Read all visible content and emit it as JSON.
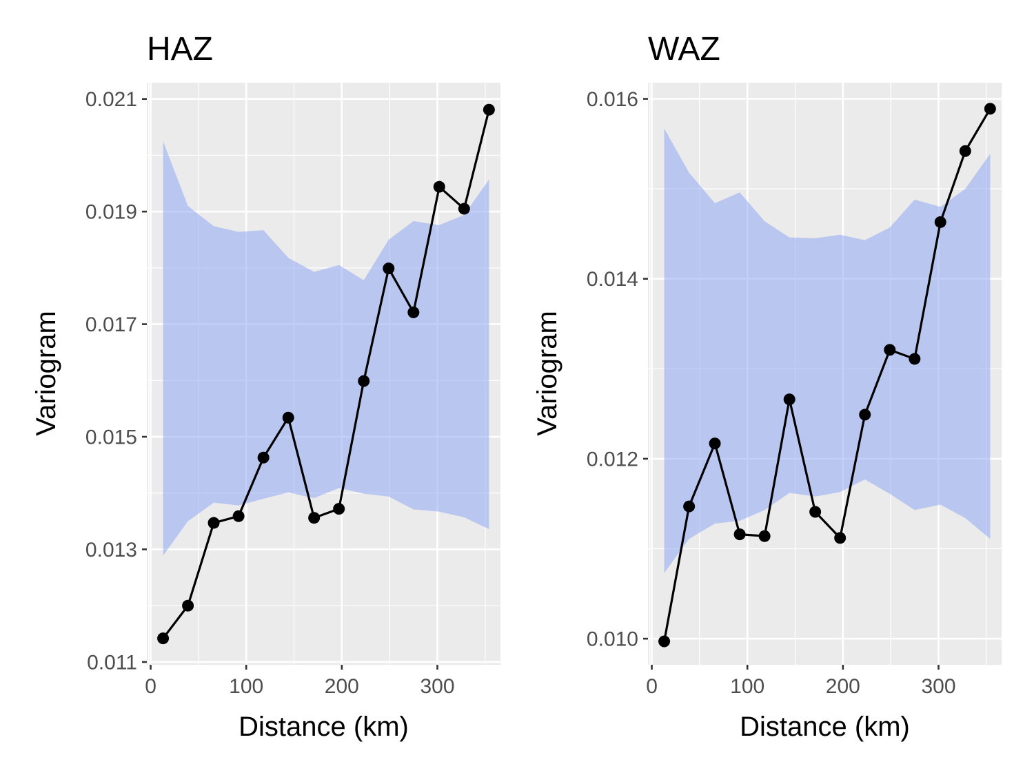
{
  "chart_data": [
    {
      "type": "line",
      "title": "HAZ",
      "xlabel": "Distance (km)",
      "ylabel": "Variogram",
      "xlim": [
        -4,
        366
      ],
      "ylim": [
        0.01095,
        0.02129
      ],
      "x_ticks": [
        0,
        100,
        200,
        300
      ],
      "x_tick_labels": [
        "0",
        "100",
        "200",
        "300"
      ],
      "y_ticks": [
        0.011,
        0.013,
        0.015,
        0.017,
        0.019,
        0.021
      ],
      "y_tick_labels": [
        "0.011",
        "0.013",
        "0.015",
        "0.017",
        "0.019",
        "0.021"
      ],
      "grid": true,
      "series": [
        {
          "x": [
            13,
            39,
            66,
            92,
            118,
            144,
            171,
            197,
            223,
            249,
            275,
            302,
            328,
            354
          ],
          "y": [
            0.01142,
            0.012,
            0.01347,
            0.01359,
            0.01463,
            0.01534,
            0.01356,
            0.01372,
            0.01599,
            0.01799,
            0.01721,
            0.01944,
            0.01905,
            0.02081
          ]
        }
      ],
      "envelope": {
        "x": [
          13,
          39,
          66,
          92,
          118,
          144,
          171,
          197,
          223,
          249,
          275,
          302,
          328,
          354
        ],
        "lower": [
          0.01289,
          0.0135,
          0.01383,
          0.01378,
          0.0139,
          0.01401,
          0.01391,
          0.01409,
          0.01399,
          0.01394,
          0.01371,
          0.01367,
          0.01357,
          0.01336
        ],
        "upper": [
          0.02025,
          0.0191,
          0.01874,
          0.01864,
          0.01867,
          0.01818,
          0.01793,
          0.01805,
          0.01778,
          0.0185,
          0.01883,
          0.01876,
          0.01894,
          0.01957
        ]
      }
    },
    {
      "type": "line",
      "title": "WAZ",
      "xlabel": "Distance (km)",
      "ylabel": "Variogram",
      "xlim": [
        -4,
        366
      ],
      "ylim": [
        0.00971,
        0.01618
      ],
      "x_ticks": [
        0,
        100,
        200,
        300
      ],
      "x_tick_labels": [
        "0",
        "100",
        "200",
        "300"
      ],
      "y_ticks": [
        0.01,
        0.012,
        0.014,
        0.016
      ],
      "y_tick_labels": [
        "0.010",
        "0.012",
        "0.014",
        "0.016"
      ],
      "grid": true,
      "series": [
        {
          "x": [
            13,
            39,
            66,
            92,
            118,
            144,
            171,
            197,
            223,
            249,
            275,
            302,
            328,
            354
          ],
          "y": [
            0.00997,
            0.01147,
            0.01217,
            0.01116,
            0.01114,
            0.01266,
            0.01141,
            0.01112,
            0.01249,
            0.01321,
            0.01311,
            0.01463,
            0.01542,
            0.01589
          ]
        }
      ],
      "envelope": {
        "x": [
          13,
          39,
          66,
          92,
          118,
          144,
          171,
          197,
          223,
          249,
          275,
          302,
          328,
          354
        ],
        "lower": [
          0.01073,
          0.01111,
          0.01128,
          0.01131,
          0.01143,
          0.01162,
          0.01158,
          0.01163,
          0.01177,
          0.01161,
          0.01143,
          0.01149,
          0.01134,
          0.01111
        ],
        "upper": [
          0.01567,
          0.01518,
          0.01484,
          0.01496,
          0.01464,
          0.01446,
          0.01445,
          0.01449,
          0.01443,
          0.01457,
          0.01488,
          0.0148,
          0.015,
          0.01539
        ]
      }
    }
  ],
  "colors": {
    "panel_background": "#ebebeb",
    "grid": "#ffffff",
    "envelope_fill": "#8fa8f2",
    "line": "#000000",
    "point": "#000000",
    "axis_text": "#4d4d4d",
    "tick": "#333333"
  }
}
